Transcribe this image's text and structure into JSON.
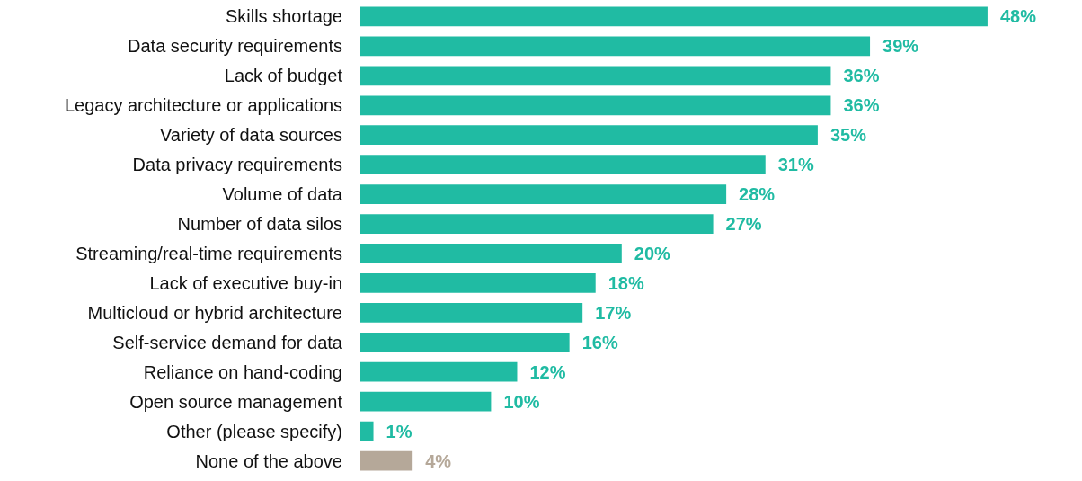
{
  "chart_data": {
    "type": "bar",
    "orientation": "horizontal",
    "categories": [
      "Skills shortage",
      "Data security requirements",
      "Lack of budget",
      "Legacy architecture or applications",
      "Variety of data sources",
      "Data privacy requirements",
      "Volume of data",
      "Number of data silos",
      "Streaming/real-time requirements",
      "Lack of executive buy-in",
      "Multicloud or hybrid architecture",
      "Self-service demand for data",
      "Reliance on hand-coding",
      "Open source management",
      "Other (please specify)",
      "None of the above"
    ],
    "values": [
      48,
      39,
      36,
      36,
      35,
      31,
      28,
      27,
      20,
      18,
      17,
      16,
      12,
      10,
      1,
      4
    ],
    "value_labels": [
      "48%",
      "39%",
      "36%",
      "36%",
      "35%",
      "31%",
      "28%",
      "27%",
      "20%",
      "18%",
      "17%",
      "16%",
      "12%",
      "10%",
      "1%",
      "4%"
    ],
    "colors": [
      "#20bba3",
      "#20bba3",
      "#20bba3",
      "#20bba3",
      "#20bba3",
      "#20bba3",
      "#20bba3",
      "#20bba3",
      "#20bba3",
      "#20bba3",
      "#20bba3",
      "#20bba3",
      "#20bba3",
      "#20bba3",
      "#20bba3",
      "#b5a899"
    ],
    "grid": false
  }
}
